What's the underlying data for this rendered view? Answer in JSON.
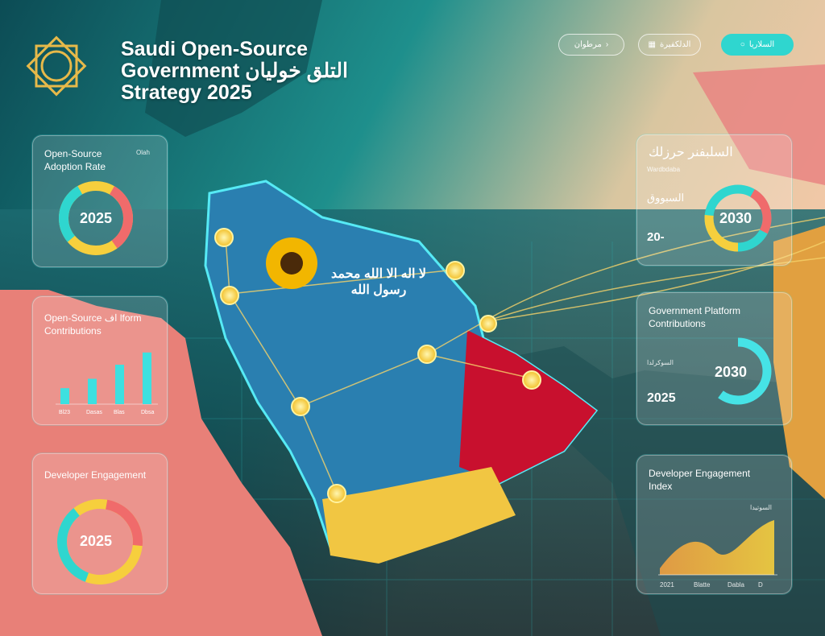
{
  "header": {
    "title_line1": "Saudi Open-Source",
    "title_line2": "Government التلق خوليان",
    "title_line3": "Strategy 2025"
  },
  "toolbar": {
    "buttons": [
      {
        "label": "مرطوان",
        "icon": "chevron-icon"
      },
      {
        "label": "الدلكفيرة",
        "icon": "calendar-icon"
      },
      {
        "label": "السلاريا",
        "icon": "circle-icon"
      }
    ]
  },
  "colors": {
    "teal": "#2fd6cf",
    "yellow": "#f6cf3d",
    "coral": "#f06b6b",
    "orange": "#f0a030"
  },
  "cards": {
    "adoption": {
      "title": "Open-Source Adoption Rate",
      "tag": "Olah",
      "center": "2025"
    },
    "contrib": {
      "title": "Open-Source اف lform Contributions",
      "tick_labels": [
        "Bl23",
        "Dasas",
        "Blas",
        "Dbsa"
      ],
      "values": [
        17,
        27,
        42,
        55
      ]
    },
    "developer": {
      "title": "Developer Engagement",
      "center": "2025"
    },
    "right1": {
      "title": "السلبفنر حرزلك",
      "subtitle": "Wardbdaba",
      "label": "السبووق",
      "value": "20-",
      "center": "2030"
    },
    "right2": {
      "title": "Government Platform Contributions",
      "label": "السوكرلدا",
      "value": "2025",
      "center": "2030",
      "progress": 0.6
    },
    "right3": {
      "title": "Developer Engagement Index",
      "label": "السوتيدا",
      "tick_labels": [
        "2021",
        "Blatte",
        "Dabla",
        "D"
      ]
    }
  },
  "map": {
    "flag_text": "لا اله الا الله محمد رسول الله"
  }
}
